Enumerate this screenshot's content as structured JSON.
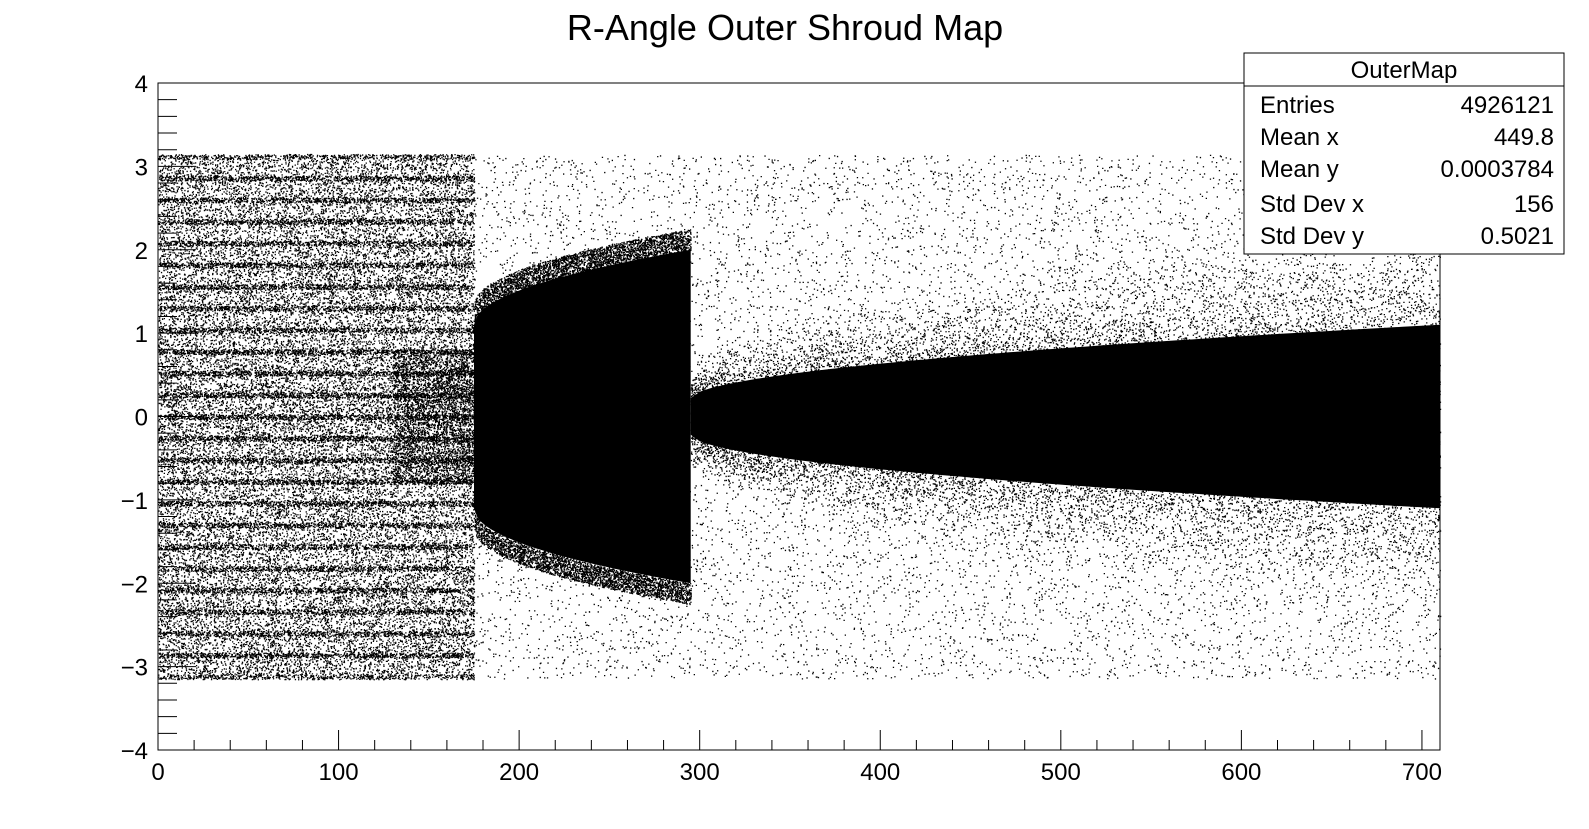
{
  "chart_data": {
    "type": "scatter",
    "title": "R-Angle Outer Shroud Map",
    "xlabel": "",
    "ylabel": "",
    "xlim": [
      0,
      710
    ],
    "ylim": [
      -4,
      4
    ],
    "x_ticks": [
      0,
      100,
      200,
      300,
      400,
      500,
      600,
      700
    ],
    "y_ticks": [
      -4,
      -3,
      -2,
      -1,
      0,
      1,
      2,
      3,
      4
    ],
    "x_tick_labels": [
      "0",
      "100",
      "200",
      "300",
      "400",
      "500",
      "600",
      "700"
    ],
    "y_tick_labels": [
      "−4",
      "−3",
      "−2",
      "−1",
      "0",
      "1",
      "2",
      "3",
      "4"
    ],
    "grid": false,
    "marker_color": "#000000",
    "stats_box": {
      "name": "OuterMap",
      "placement": "top-right",
      "rows": [
        {
          "label": "Entries",
          "value": "4926121"
        },
        {
          "label": "Mean x",
          "value": "449.8"
        },
        {
          "label": "Mean y",
          "value": "0.0003784"
        },
        {
          "label": "Std Dev x",
          "value": "156"
        },
        {
          "label": "Std Dev y",
          "value": "0.5021"
        }
      ]
    },
    "regions": [
      {
        "x_range": [
          0,
          175
        ],
        "y_range": [
          -3.14,
          3.14
        ],
        "density": "medium"
      },
      {
        "x_range": [
          175,
          295
        ],
        "y_half_width": [
          1.1,
          2.0
        ],
        "density": "saturated"
      },
      {
        "x_range": [
          295,
          710
        ],
        "y_half_width": [
          0.2,
          1.1
        ],
        "density": "saturated"
      },
      {
        "x_range": [
          175,
          710
        ],
        "y_range": [
          -3.14,
          3.14
        ],
        "density": "sparse"
      }
    ]
  }
}
